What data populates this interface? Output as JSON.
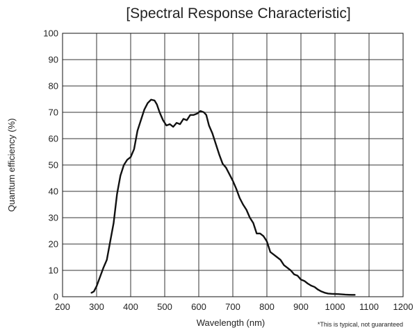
{
  "chart_data": {
    "type": "line",
    "title": "[Spectral Response Characteristic]",
    "xlabel": "Wavelength (nm)",
    "ylabel": "Quantum efficiency (%)",
    "xlim": [
      200,
      1200
    ],
    "ylim": [
      0,
      100
    ],
    "x_ticks": [
      200,
      300,
      400,
      500,
      600,
      700,
      800,
      900,
      1000,
      1100,
      1200
    ],
    "y_ticks": [
      0,
      10,
      20,
      30,
      40,
      50,
      60,
      70,
      80,
      90,
      100
    ],
    "grid": true,
    "note": "*This is typical, not guaranteed",
    "series": [
      {
        "x": [
          285,
          292,
          300,
          310,
          320,
          330,
          340,
          350,
          360,
          370,
          380,
          390,
          400,
          410,
          420,
          430,
          440,
          450,
          460,
          470,
          477,
          485,
          495,
          505,
          515,
          525,
          535,
          545,
          555,
          565,
          575,
          585,
          595,
          605,
          615,
          622,
          630,
          640,
          650,
          660,
          670,
          680,
          690,
          700,
          710,
          720,
          730,
          740,
          750,
          760,
          770,
          780,
          790,
          800,
          810,
          820,
          830,
          840,
          850,
          860,
          870,
          880,
          890,
          900,
          910,
          920,
          930,
          940,
          950,
          960,
          970,
          980,
          990,
          1000,
          1010,
          1020,
          1030,
          1040,
          1050,
          1058
        ],
        "y": [
          1.5,
          2,
          4,
          7.5,
          11,
          14,
          21,
          28,
          39,
          46,
          50,
          52,
          53,
          56,
          63,
          67,
          71,
          73.5,
          74.8,
          74.5,
          73,
          70,
          67,
          65,
          65.5,
          64.5,
          66,
          65.5,
          67.5,
          67,
          69,
          69,
          69.5,
          70.5,
          70,
          69,
          65,
          62,
          58,
          54,
          50.5,
          49,
          46.5,
          44,
          41,
          37.5,
          35,
          33,
          30,
          28,
          24,
          24,
          23,
          21,
          17,
          16,
          15,
          14,
          12,
          11,
          10,
          8.5,
          8,
          6.5,
          6,
          5,
          4.2,
          3.7,
          2.7,
          2,
          1.5,
          1.2,
          1.1,
          1.05,
          1.0,
          0.9,
          0.8,
          0.75,
          0.7,
          0.7
        ]
      }
    ]
  }
}
